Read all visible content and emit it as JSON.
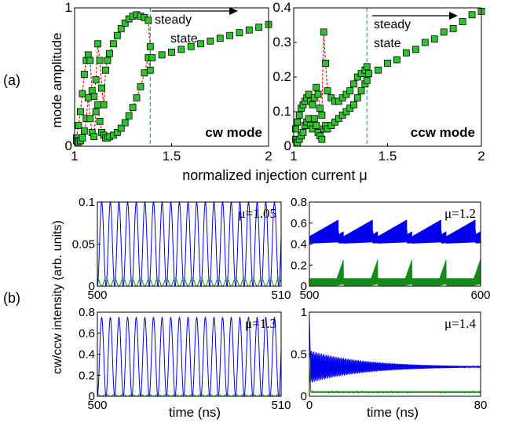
{
  "panel_labels": {
    "a": "(a)",
    "b": "(b)"
  },
  "labels_a": {
    "ylabel": "mode amplitude",
    "xlabel": "normalized injection current μ",
    "steady": "steady",
    "state": "state"
  },
  "ylabel_b": "cw/ccw intensity (arb. units)",
  "xlabel_b": "time (ns)",
  "colors": {
    "cw": "#0000ee",
    "ccw": "#168a16",
    "marker": "#2ec42e",
    "dash": "#ee1111",
    "vline": "#2aa0b0"
  },
  "chart_data": [
    {
      "id": "a1",
      "type": "scatter",
      "title": "cw mode",
      "xlim": [
        1,
        2
      ],
      "ylim": [
        0,
        1
      ],
      "xticks": [
        "1",
        "1.5",
        "2"
      ],
      "yticks": [
        "0",
        "1"
      ],
      "vline": 1.39,
      "series": [
        {
          "x": [
            1.01,
            1.02,
            1.03,
            1.04,
            1.05,
            1.06,
            1.07,
            1.08,
            1.09,
            1.1,
            1.11,
            1.12,
            1.13,
            1.14,
            1.15,
            1.16,
            1.17,
            1.18,
            1.2,
            1.22,
            1.24,
            1.26,
            1.28,
            1.3,
            1.32,
            1.34,
            1.36,
            1.38,
            1.39
          ],
          "y": [
            0.06,
            0.15,
            0.25,
            0.38,
            0.52,
            0.62,
            0.66,
            0.62,
            0.4,
            0.36,
            0.48,
            0.74,
            0.62,
            0.42,
            0.3,
            0.55,
            0.62,
            0.67,
            0.74,
            0.8,
            0.85,
            0.89,
            0.92,
            0.94,
            0.95,
            0.94,
            0.93,
            0.91,
            0.72
          ]
        },
        {
          "x": [
            1.01,
            1.02,
            1.03,
            1.04,
            1.05,
            1.06,
            1.07,
            1.08,
            1.09,
            1.1,
            1.11,
            1.12,
            1.13,
            1.14,
            1.15,
            1.16,
            1.17,
            1.18,
            1.2,
            1.22,
            1.24,
            1.26,
            1.28,
            1.3,
            1.32,
            1.34,
            1.36,
            1.38,
            1.39
          ],
          "y": [
            0.04,
            0.03,
            0.04,
            0.06,
            0.11,
            0.2,
            0.35,
            0.2,
            0.1,
            0.07,
            0.25,
            0.3,
            0.18,
            0.1,
            0.08,
            0.06,
            0.06,
            0.07,
            0.08,
            0.1,
            0.13,
            0.17,
            0.22,
            0.28,
            0.35,
            0.43,
            0.53,
            0.64,
            0.55
          ]
        },
        {
          "x": [
            1.4,
            1.45,
            1.5,
            1.55,
            1.6,
            1.65,
            1.7,
            1.75,
            1.8,
            1.85,
            1.9,
            1.95,
            2.0
          ],
          "y": [
            0.64,
            0.66,
            0.68,
            0.7,
            0.72,
            0.74,
            0.76,
            0.78,
            0.8,
            0.82,
            0.84,
            0.86,
            0.88
          ]
        }
      ]
    },
    {
      "id": "a2",
      "type": "scatter",
      "title": "ccw mode",
      "xlim": [
        1,
        2
      ],
      "ylim": [
        0,
        0.4
      ],
      "xticks": [
        "1",
        "1.5",
        "2"
      ],
      "yticks": [
        "0",
        "0.1",
        "0.2",
        "0.3",
        "0.4"
      ],
      "vline": 1.39,
      "series": [
        {
          "x": [
            1.01,
            1.02,
            1.03,
            1.04,
            1.05,
            1.06,
            1.07,
            1.08,
            1.09,
            1.1,
            1.11,
            1.12,
            1.13,
            1.14,
            1.15,
            1.16,
            1.17,
            1.18,
            1.2,
            1.22,
            1.24,
            1.26,
            1.28,
            1.3,
            1.32,
            1.34,
            1.36,
            1.38,
            1.39
          ],
          "y": [
            0.05,
            0.07,
            0.09,
            0.11,
            0.12,
            0.13,
            0.14,
            0.15,
            0.13,
            0.12,
            0.14,
            0.17,
            0.15,
            0.11,
            0.09,
            0.33,
            0.24,
            0.16,
            0.14,
            0.13,
            0.13,
            0.14,
            0.15,
            0.16,
            0.18,
            0.2,
            0.21,
            0.22,
            0.23
          ]
        },
        {
          "x": [
            1.01,
            1.02,
            1.03,
            1.04,
            1.05,
            1.06,
            1.07,
            1.08,
            1.09,
            1.1,
            1.11,
            1.12,
            1.13,
            1.14,
            1.15,
            1.16,
            1.17,
            1.18,
            1.2,
            1.22,
            1.24,
            1.26,
            1.28,
            1.3,
            1.32,
            1.34,
            1.36,
            1.38,
            1.39
          ],
          "y": [
            0.02,
            0.01,
            0.02,
            0.03,
            0.04,
            0.06,
            0.07,
            0.08,
            0.06,
            0.05,
            0.08,
            0.06,
            0.04,
            0.03,
            0.02,
            0.05,
            0.06,
            0.05,
            0.06,
            0.07,
            0.08,
            0.09,
            0.1,
            0.11,
            0.12,
            0.14,
            0.16,
            0.18,
            0.19
          ]
        },
        {
          "x": [
            1.4,
            1.45,
            1.5,
            1.55,
            1.6,
            1.65,
            1.7,
            1.75,
            1.8,
            1.85,
            1.9,
            1.95,
            2.0
          ],
          "y": [
            0.21,
            0.22,
            0.24,
            0.25,
            0.27,
            0.28,
            0.3,
            0.31,
            0.33,
            0.34,
            0.36,
            0.38,
            0.39
          ]
        }
      ]
    },
    {
      "id": "b1",
      "type": "line",
      "annotation": "μ=1.05",
      "xlim": [
        500,
        510
      ],
      "ylim": [
        0,
        0.1
      ],
      "xticks": [
        "500",
        "510"
      ],
      "yticks": [
        "0",
        "0.05",
        "0.1"
      ],
      "period_ns": 0.47,
      "cw_peak": 0.1,
      "ccw_peak": 0.01
    },
    {
      "id": "b2",
      "type": "line",
      "annotation": "μ=1.2",
      "xlim": [
        500,
        600
      ],
      "ylim": [
        0,
        0.8
      ],
      "xticks": [
        "500",
        "600"
      ],
      "yticks": [
        "0",
        "0.2",
        "0.4",
        "0.6",
        "0.8"
      ],
      "burst_period_ns": 20,
      "cw_peak_min": 0.48,
      "cw_peak_max": 0.68,
      "cw_base": 0.4,
      "ccw_base": 0.08,
      "ccw_peak": 0.2
    },
    {
      "id": "b3",
      "type": "line",
      "annotation": "μ=1.3",
      "xlim": [
        500,
        510
      ],
      "ylim": [
        0,
        0.8
      ],
      "xticks": [
        "500",
        "510"
      ],
      "yticks": [
        "0",
        "0.2",
        "0.4",
        "0.6",
        "0.8"
      ],
      "period_ns": 0.47,
      "cw_peak": 0.75,
      "ccw_peak": 0.02
    },
    {
      "id": "b4",
      "type": "line",
      "annotation": "μ=1.4",
      "xlim": [
        0,
        80
      ],
      "ylim": [
        0,
        1
      ],
      "xticks": [
        "0",
        "80"
      ],
      "yticks": [
        "0",
        "0.5",
        "1"
      ],
      "cw_steady": 0.35,
      "cw_initial_amp": 0.4,
      "ccw_steady": 0.05
    }
  ]
}
